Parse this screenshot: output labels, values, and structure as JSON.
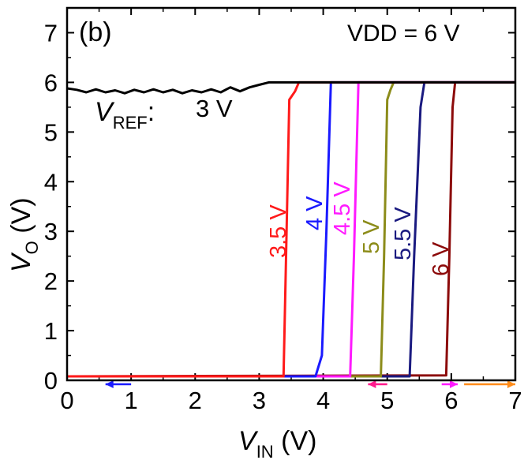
{
  "chart_data": {
    "type": "line",
    "panel_label": "(b)",
    "condition_label": "VDD = 6 V",
    "xlabel": {
      "main": "V",
      "sub": "IN",
      "unit": " (V)"
    },
    "ylabel": {
      "main": "V",
      "sub": "O",
      "unit": " (V)"
    },
    "xlim": [
      0,
      7
    ],
    "ylim": [
      0,
      7.5
    ],
    "xticks": [
      "0",
      "1",
      "2",
      "3",
      "4",
      "5",
      "6",
      "7"
    ],
    "yticks": [
      "0",
      "1",
      "2",
      "3",
      "4",
      "5",
      "6",
      "7"
    ],
    "series_label_prefix": {
      "main": "V",
      "sub": "REF",
      "colon": ":"
    },
    "colors": {
      "3 V": "#000000",
      "3.5 V": "#ff1a1a",
      "4 V": "#1a1aff",
      "4.5 V": "#ff1aff",
      "5 V": "#8c8c1a",
      "5.5 V": "#1a1a80",
      "6 V": "#8c0a0a"
    },
    "series": [
      {
        "name": "3 V",
        "values": [
          [
            0,
            5.88
          ],
          [
            0.15,
            5.85
          ],
          [
            0.3,
            5.8
          ],
          [
            0.45,
            5.86
          ],
          [
            0.6,
            5.8
          ],
          [
            0.75,
            5.84
          ],
          [
            0.9,
            5.78
          ],
          [
            1.05,
            5.85
          ],
          [
            1.2,
            5.8
          ],
          [
            1.35,
            5.86
          ],
          [
            1.5,
            5.8
          ],
          [
            1.65,
            5.85
          ],
          [
            1.8,
            5.78
          ],
          [
            1.95,
            5.84
          ],
          [
            2.1,
            5.8
          ],
          [
            2.25,
            5.86
          ],
          [
            2.4,
            5.8
          ],
          [
            2.55,
            5.9
          ],
          [
            2.7,
            5.82
          ],
          [
            2.85,
            5.9
          ],
          [
            3.0,
            5.95
          ],
          [
            3.15,
            6.0
          ],
          [
            3.3,
            6.0
          ],
          [
            3.45,
            6.0
          ],
          [
            7.0,
            6.0
          ]
        ]
      },
      {
        "name": "3.5 V",
        "values": [
          [
            0,
            0.08
          ],
          [
            3.38,
            0.08
          ],
          [
            3.42,
            2.5
          ],
          [
            3.47,
            5.65
          ],
          [
            3.56,
            5.82
          ],
          [
            3.62,
            6.0
          ],
          [
            7.0,
            6.0
          ]
        ]
      },
      {
        "name": "4 V",
        "values": [
          [
            0,
            0.08
          ],
          [
            3.88,
            0.08
          ],
          [
            3.98,
            0.5
          ],
          [
            4.05,
            3.0
          ],
          [
            4.12,
            6.0
          ],
          [
            7.0,
            6.0
          ]
        ]
      },
      {
        "name": "4.5 V",
        "values": [
          [
            0,
            0.08
          ],
          [
            4.42,
            0.08
          ],
          [
            4.48,
            2.5
          ],
          [
            4.55,
            6.0
          ],
          [
            7.0,
            6.0
          ]
        ]
      },
      {
        "name": "5 V",
        "values": [
          [
            0,
            0.08
          ],
          [
            4.9,
            0.08
          ],
          [
            4.95,
            2.5
          ],
          [
            5.0,
            5.65
          ],
          [
            5.05,
            5.85
          ],
          [
            5.1,
            6.0
          ],
          [
            7.0,
            6.0
          ]
        ]
      },
      {
        "name": "5.5 V",
        "values": [
          [
            0,
            0.08
          ],
          [
            5.35,
            0.08
          ],
          [
            5.42,
            2.5
          ],
          [
            5.52,
            5.5
          ],
          [
            5.58,
            6.0
          ],
          [
            7.0,
            6.0
          ]
        ]
      },
      {
        "name": "6 V",
        "values": [
          [
            0,
            0.08
          ],
          [
            5.92,
            0.1
          ],
          [
            5.97,
            2.5
          ],
          [
            6.02,
            5.5
          ],
          [
            6.06,
            6.0
          ],
          [
            7.0,
            6.0
          ]
        ]
      }
    ],
    "series_labels": [
      {
        "text": "3 V",
        "color": "#000000"
      },
      {
        "text": "3.5 V",
        "color": "#ff1a1a"
      },
      {
        "text": "4 V",
        "color": "#1a1aff"
      },
      {
        "text": "4.5 V",
        "color": "#ff1aff"
      },
      {
        "text": "5 V",
        "color": "#8c8c1a"
      },
      {
        "text": "5.5 V",
        "color": "#1a1a80"
      },
      {
        "text": "6 V",
        "color": "#8c0a0a"
      }
    ],
    "arrows": [
      {
        "from": 1.0,
        "to": 0.6,
        "color": "#1a1aff"
      },
      {
        "from": 5.0,
        "to": 4.7,
        "color": "#ff1a8c"
      },
      {
        "from": 5.85,
        "to": 6.1,
        "color": "#ff1aff"
      },
      {
        "from": 6.2,
        "to": 7.0,
        "color": "#ff8c1a"
      }
    ]
  }
}
